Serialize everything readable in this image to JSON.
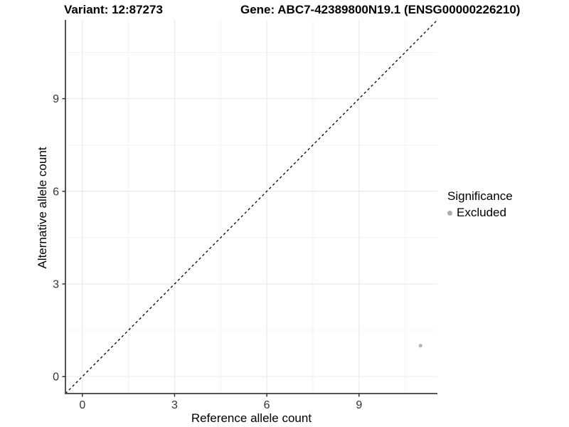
{
  "header": {
    "variant_title": "Variant: 12:87273",
    "gene_title": "Gene: ABC7-42389800N19.1 (ENSG00000226210)"
  },
  "chart_data": {
    "type": "scatter",
    "xlabel": "Reference allele count",
    "ylabel": "Alternative allele count",
    "xlim": [
      -0.55,
      11.55
    ],
    "ylim": [
      -0.55,
      11.55
    ],
    "x_ticks": [
      0,
      3,
      6,
      9
    ],
    "y_ticks": [
      0,
      3,
      6,
      9
    ],
    "x_minor_ticks": [
      1.5,
      4.5,
      7.5,
      10.5
    ],
    "y_minor_ticks": [
      1.5,
      4.5,
      7.5,
      10.5
    ],
    "grid": true,
    "reference_line": {
      "kind": "identity",
      "slope": 1,
      "intercept": 0,
      "style": "dashed",
      "color": "#000000"
    },
    "series": [
      {
        "name": "Excluded",
        "color": "#b5b5b5",
        "point_radius": 2.6,
        "points": [
          {
            "x": 11,
            "y": 1
          }
        ]
      }
    ],
    "legend": {
      "title": "Significance",
      "position": "right",
      "entries": [
        {
          "label": "Excluded",
          "color": "#adadad"
        }
      ]
    },
    "style": {
      "panel_background": "#ffffff",
      "grid_major_color": "#e6e6e6",
      "grid_minor_color": "#f3f3f3",
      "axis_line_color": "#555555",
      "tick_mark_color": "#333333",
      "tick_label_color": "#333333",
      "tick_label_size": 16
    }
  }
}
